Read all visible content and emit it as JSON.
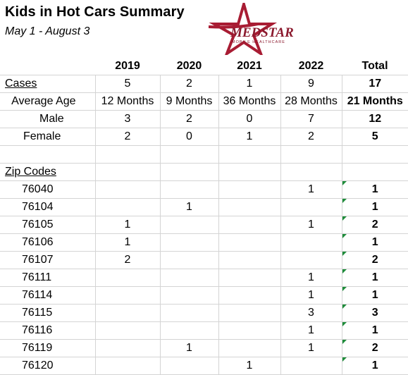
{
  "title": "Kids in Hot Cars Summary",
  "subtitle": "May 1 - August 3",
  "logo": {
    "text": "MEDSTAR",
    "tagline": "MOBILE HEALTHCARE",
    "color": "#8b1a2e",
    "star_color": "#a81c33"
  },
  "columns": [
    "2019",
    "2020",
    "2021",
    "2022",
    "Total"
  ],
  "summary_rows": [
    {
      "label": "Cases",
      "values": [
        "5",
        "2",
        "1",
        "9"
      ],
      "total": "17"
    },
    {
      "label": "Average Age",
      "values": [
        "12 Months",
        "9 Months",
        "36 Months",
        "28 Months"
      ],
      "total": "21 Months"
    },
    {
      "label": "Male",
      "values": [
        "3",
        "2",
        "0",
        "7"
      ],
      "total": "12"
    },
    {
      "label": "Female",
      "values": [
        "2",
        "0",
        "1",
        "2"
      ],
      "total": "5"
    }
  ],
  "zip_header": "Zip Codes",
  "zip_rows": [
    {
      "zip": "76040",
      "values": [
        "",
        "",
        "",
        "1"
      ],
      "total": "1"
    },
    {
      "zip": "76104",
      "values": [
        "",
        "1",
        "",
        ""
      ],
      "total": "1"
    },
    {
      "zip": "76105",
      "values": [
        "1",
        "",
        "",
        "1"
      ],
      "total": "2"
    },
    {
      "zip": "76106",
      "values": [
        "1",
        "",
        "",
        ""
      ],
      "total": "1"
    },
    {
      "zip": "76107",
      "values": [
        "2",
        "",
        "",
        ""
      ],
      "total": "2"
    },
    {
      "zip": "76111",
      "values": [
        "",
        "",
        "",
        "1"
      ],
      "total": "1"
    },
    {
      "zip": "76114",
      "values": [
        "",
        "",
        "",
        "1"
      ],
      "total": "1"
    },
    {
      "zip": "76115",
      "values": [
        "",
        "",
        "",
        "3"
      ],
      "total": "3"
    },
    {
      "zip": "76116",
      "values": [
        "",
        "",
        "",
        "1"
      ],
      "total": "1"
    },
    {
      "zip": "76119",
      "values": [
        "",
        "1",
        "",
        "1"
      ],
      "total": "2"
    },
    {
      "zip": "76120",
      "values": [
        "",
        "",
        "1",
        ""
      ],
      "total": "1"
    }
  ],
  "flag_color": "#1e8c3a"
}
